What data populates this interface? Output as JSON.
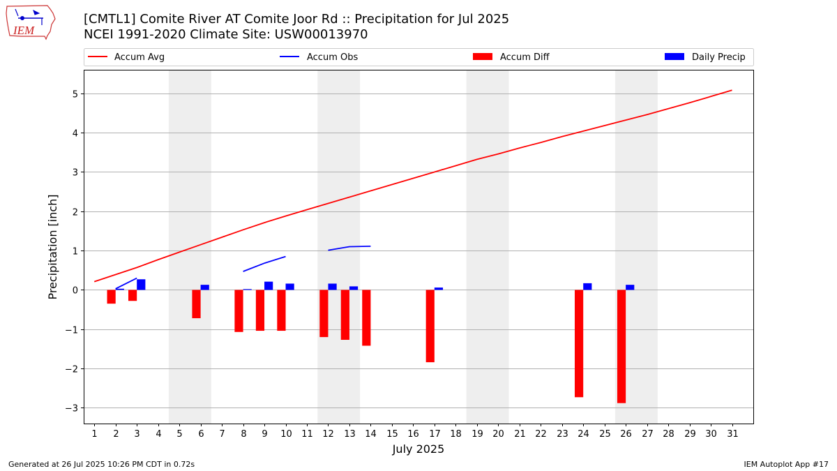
{
  "header": {
    "title_line1": "[CMTL1] Comite River  AT Comite Joor Rd :: Precipitation for Jul 2025",
    "title_line2": "NCEI 1991-2020 Climate Site: USW00013970"
  },
  "logo": {
    "text": "IEM"
  },
  "footer": {
    "generated": "Generated at 26 Jul 2025 10:26 PM CDT in 0.72s",
    "app": "IEM Autoplot App #17"
  },
  "colors": {
    "accum_avg": "#ff0000",
    "accum_obs": "#0000ff",
    "accum_diff": "#ff0000",
    "daily_precip": "#0000ff",
    "weekend_shade": "#eeeeee",
    "grid": "#b0b0b0"
  },
  "chart_data": {
    "type": "bar",
    "title": "[CMTL1] Comite River  AT Comite Joor Rd :: Precipitation for Jul 2025",
    "subtitle": "NCEI 1991-2020 Climate Site: USW00013970",
    "xlabel": "July 2025",
    "ylabel": "Precipitation [inch]",
    "xlim": [
      0.5,
      32
    ],
    "ylim": [
      -3.4,
      5.6
    ],
    "x_ticks": [
      1,
      2,
      3,
      4,
      5,
      6,
      7,
      8,
      9,
      10,
      11,
      12,
      13,
      14,
      15,
      16,
      17,
      18,
      19,
      20,
      21,
      22,
      23,
      24,
      25,
      26,
      27,
      28,
      29,
      30,
      31
    ],
    "y_ticks": [
      -3,
      -2,
      -1,
      0,
      1,
      2,
      3,
      4,
      5
    ],
    "y_tick_labels": [
      "−3",
      "−2",
      "−1",
      "0",
      "1",
      "2",
      "3",
      "4",
      "5"
    ],
    "grid": "horizontal",
    "legend": {
      "placement": "top, above plot",
      "entries": [
        "Accum Avg",
        "Accum Obs",
        "Accum Diff",
        "Daily Precip"
      ]
    },
    "weekend_spans": [
      [
        4.5,
        6.5
      ],
      [
        11.5,
        13.5
      ],
      [
        18.5,
        20.5
      ],
      [
        25.5,
        27.5
      ]
    ],
    "series": [
      {
        "name": "Accum Avg",
        "kind": "line",
        "x": [
          1,
          2,
          3,
          4,
          5,
          6,
          7,
          8,
          9,
          10,
          11,
          12,
          13,
          14,
          15,
          16,
          17,
          18,
          19,
          20,
          21,
          22,
          23,
          24,
          25,
          26,
          27,
          28,
          29,
          30,
          31
        ],
        "values": [
          0.21,
          0.39,
          0.57,
          0.77,
          0.96,
          1.15,
          1.34,
          1.53,
          1.71,
          1.88,
          2.04,
          2.2,
          2.36,
          2.52,
          2.68,
          2.84,
          3.0,
          3.16,
          3.32,
          3.46,
          3.61,
          3.75,
          3.9,
          4.04,
          4.18,
          4.32,
          4.46,
          4.61,
          4.76,
          4.92,
          5.08
        ]
      },
      {
        "name": "Accum Obs",
        "kind": "line",
        "segments": [
          {
            "x": [
              2,
              3
            ],
            "values": [
              0.03,
              0.3
            ]
          },
          {
            "x": [
              8,
              9,
              10
            ],
            "values": [
              0.47,
              0.68,
              0.85
            ]
          },
          {
            "x": [
              12,
              13,
              14
            ],
            "values": [
              1.01,
              1.1,
              1.11
            ]
          }
        ]
      },
      {
        "name": "Accum Diff",
        "kind": "bar",
        "x": [
          1.8,
          2.8,
          5.8,
          7.8,
          8.8,
          9.8,
          11.8,
          12.8,
          13.8,
          16.8,
          23.8,
          25.8
        ],
        "values": [
          -0.35,
          -0.28,
          -0.72,
          -1.07,
          -1.04,
          -1.04,
          -1.2,
          -1.27,
          -1.42,
          -1.84,
          -2.73,
          -2.88
        ]
      },
      {
        "name": "Daily Precip",
        "kind": "bar",
        "x": [
          2.2,
          3.2,
          6.2,
          8.2,
          9.2,
          10.2,
          12.2,
          13.2,
          17.2,
          24.2,
          26.2
        ],
        "values": [
          0.03,
          0.27,
          0.13,
          0.02,
          0.21,
          0.16,
          0.16,
          0.09,
          0.06,
          0.17,
          0.13
        ]
      }
    ]
  }
}
